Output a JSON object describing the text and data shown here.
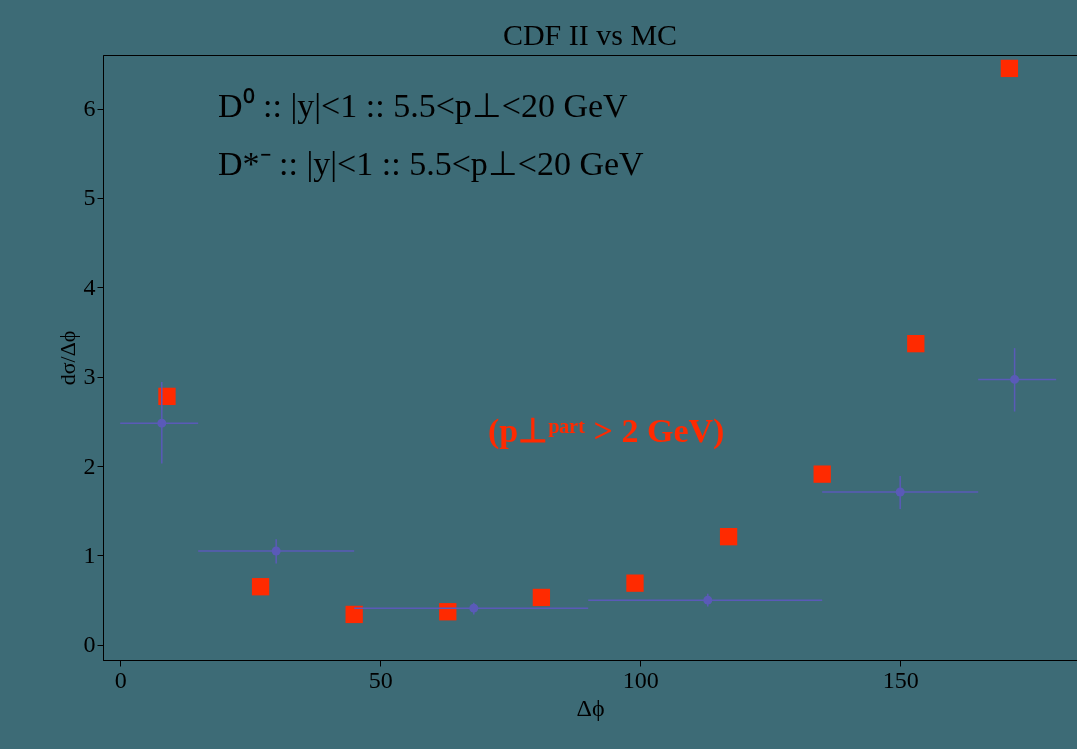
{
  "chart_data": {
    "type": "scatter",
    "title": "CDF II vs MC",
    "xlabel": "Δϕ",
    "ylabel": "dσ/Δϕ",
    "annotations": [
      "D⁰ :: |y|<1 :: 5.5<p⊥<20 GeV",
      "D*⁻ :: |y|<1 :: 5.5<p⊥<20 GeV"
    ],
    "xlim": [
      -3.3,
      184
    ],
    "ylim": [
      -0.17,
      6.6
    ],
    "xticks": [
      0,
      50,
      100,
      150
    ],
    "yticks": [
      0,
      1,
      2,
      3,
      4,
      5,
      6
    ],
    "series": [
      {
        "name": "(p⊥ᵖᵃʳᵗ > 2 GeV)",
        "color": "#ff2a00",
        "marker": "square",
        "x": [
          9,
          27,
          45,
          63,
          81,
          99,
          117,
          135,
          153,
          171
        ],
        "values": [
          2.78,
          0.65,
          0.34,
          0.37,
          0.53,
          0.69,
          1.21,
          1.91,
          3.37,
          6.45
        ]
      },
      {
        "color": "#5a5ab8",
        "marker": "circle",
        "x": [
          8,
          30,
          68,
          113,
          150,
          172
        ],
        "values": [
          2.48,
          1.05,
          0.41,
          0.5,
          1.71,
          2.97
        ],
        "errors": [
          [
            2.03,
            2.94
          ],
          [
            0.91,
            1.18
          ],
          [
            0.34,
            0.47
          ],
          [
            0.43,
            0.57
          ],
          [
            1.52,
            1.89
          ],
          [
            2.61,
            3.32
          ]
        ],
        "xerrors": [
          [
            0,
            15
          ],
          [
            15,
            45
          ],
          [
            45,
            90
          ],
          [
            90,
            135
          ],
          [
            135,
            165
          ],
          [
            165,
            180
          ]
        ]
      }
    ]
  }
}
